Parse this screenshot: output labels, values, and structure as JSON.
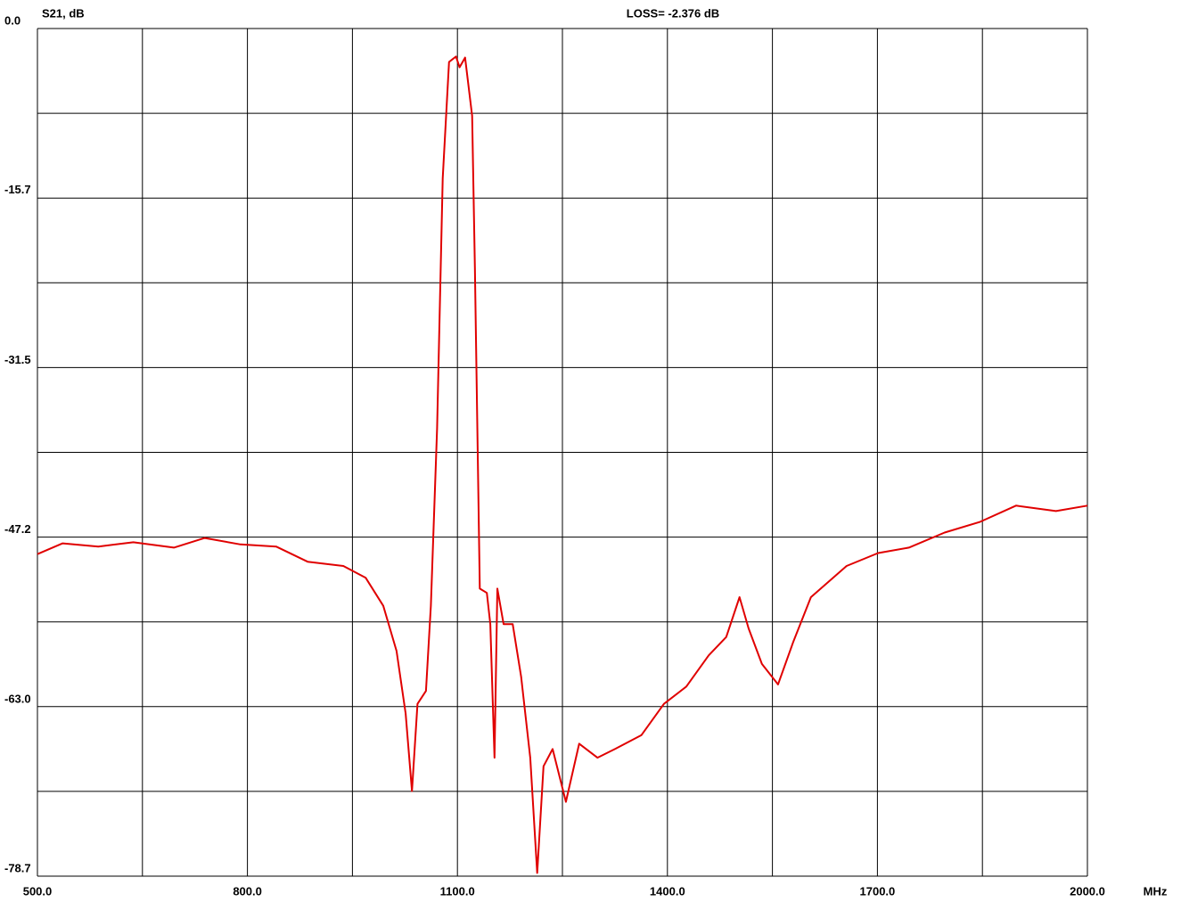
{
  "chart_data": {
    "type": "line",
    "title": "LOSS=  -2.376 dB",
    "y_label": "S21, dB",
    "x_label": "MHz",
    "x": [
      500,
      536,
      587,
      637,
      695,
      739,
      790,
      841,
      886,
      937,
      969,
      994,
      1013,
      1026,
      1035,
      1043,
      1055,
      1062,
      1071,
      1079,
      1088,
      1098,
      1103,
      1111,
      1121,
      1125,
      1132,
      1142,
      1147,
      1153,
      1157,
      1166,
      1179,
      1191,
      1204,
      1214,
      1223,
      1236,
      1255,
      1274,
      1300,
      1325,
      1363,
      1395,
      1427,
      1459,
      1484,
      1503,
      1516,
      1535,
      1558,
      1580,
      1605,
      1656,
      1701,
      1745,
      1796,
      1847,
      1898,
      1955,
      2000
    ],
    "series": [
      {
        "name": "S21",
        "color": "#e00000",
        "values": [
          -48.8,
          -47.8,
          -48.1,
          -47.7,
          -48.2,
          -47.3,
          -47.9,
          -48.1,
          -49.5,
          -49.9,
          -51.0,
          -53.6,
          -57.8,
          -63.6,
          -70.8,
          -62.7,
          -61.5,
          -53.6,
          -37.1,
          -13.9,
          -3.1,
          -2.6,
          -3.6,
          -2.7,
          -8.1,
          -22.2,
          -52.0,
          -52.4,
          -55.3,
          -67.7,
          -52.0,
          -55.3,
          -55.3,
          -60.2,
          -67.7,
          -78.4,
          -68.5,
          -66.9,
          -71.8,
          -66.4,
          -67.7,
          -66.9,
          -65.6,
          -62.7,
          -61.1,
          -58.2,
          -56.5,
          -52.8,
          -55.7,
          -59.0,
          -60.9,
          -56.9,
          -52.8,
          -49.9,
          -48.7,
          -48.2,
          -46.8,
          -45.8,
          -44.3,
          -44.8,
          -44.3
        ]
      }
    ],
    "xlim": [
      500,
      2000
    ],
    "ylim": [
      -78.7,
      0
    ],
    "xticks": [
      {
        "value": 500,
        "label": "500.0"
      },
      {
        "value": 800,
        "label": "800.0"
      },
      {
        "value": 1100,
        "label": "1100.0"
      },
      {
        "value": 1400,
        "label": "1400.0"
      },
      {
        "value": 1700,
        "label": "1700.0"
      },
      {
        "value": 2000,
        "label": "2000.0"
      }
    ],
    "yticks": [
      {
        "value": 0,
        "label": "0.0"
      },
      -15.7,
      -31.5,
      -47.2,
      {
        "value": -63,
        "label": "-63.0"
      },
      -78.7
    ],
    "xgrid": [
      500,
      650,
      800,
      950,
      1100,
      1250,
      1400,
      1550,
      1700,
      1850,
      2000
    ],
    "ygrid": [
      0,
      -7.87,
      -15.74,
      -23.61,
      -31.48,
      -39.35,
      -47.22,
      -55.09,
      -62.96,
      -70.83,
      -78.7
    ],
    "grid": true
  }
}
